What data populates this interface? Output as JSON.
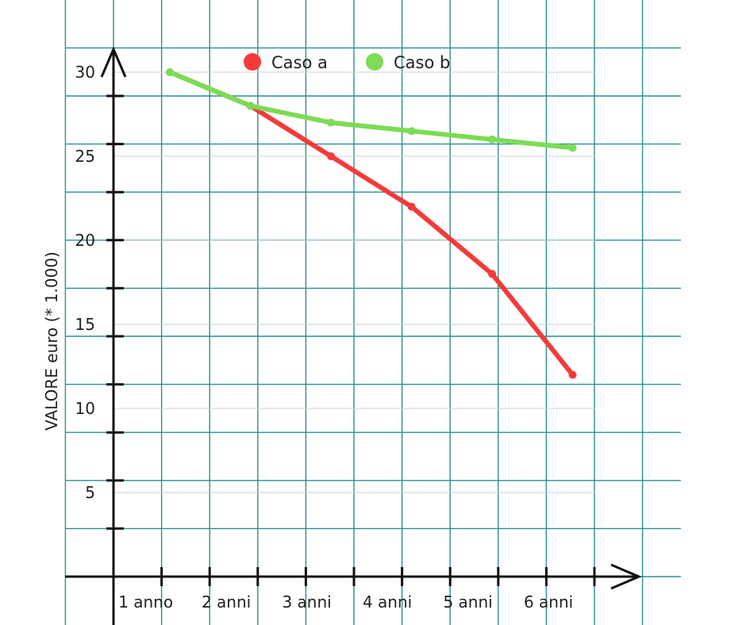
{
  "chart_data": {
    "type": "line",
    "title": "",
    "xlabel": "",
    "ylabel": "VALORE euro (* 1.000)",
    "categories": [
      "1 anno",
      "2 anni",
      "3 anni",
      "4 anni",
      "5 anni",
      "6 anni"
    ],
    "y_ticks": [
      "5",
      "10",
      "15",
      "20",
      "25",
      "30"
    ],
    "ylim": [
      0,
      32
    ],
    "grid": true,
    "legend_position": "top",
    "series": [
      {
        "name": "Caso a",
        "color": "#f53a3a",
        "points": [
          {
            "x": 0.7,
            "y": 30
          },
          {
            "x": 1.7,
            "y": 28
          },
          {
            "x": 2.7,
            "y": 25
          },
          {
            "x": 3.7,
            "y": 22
          },
          {
            "x": 4.7,
            "y": 18
          },
          {
            "x": 5.7,
            "y": 12
          }
        ]
      },
      {
        "name": "Caso b",
        "color": "#7ddb55",
        "points": [
          {
            "x": 0.7,
            "y": 30
          },
          {
            "x": 1.7,
            "y": 28
          },
          {
            "x": 2.7,
            "y": 27
          },
          {
            "x": 3.7,
            "y": 26.5
          },
          {
            "x": 4.7,
            "y": 26
          },
          {
            "x": 5.7,
            "y": 25.5
          }
        ]
      }
    ]
  }
}
